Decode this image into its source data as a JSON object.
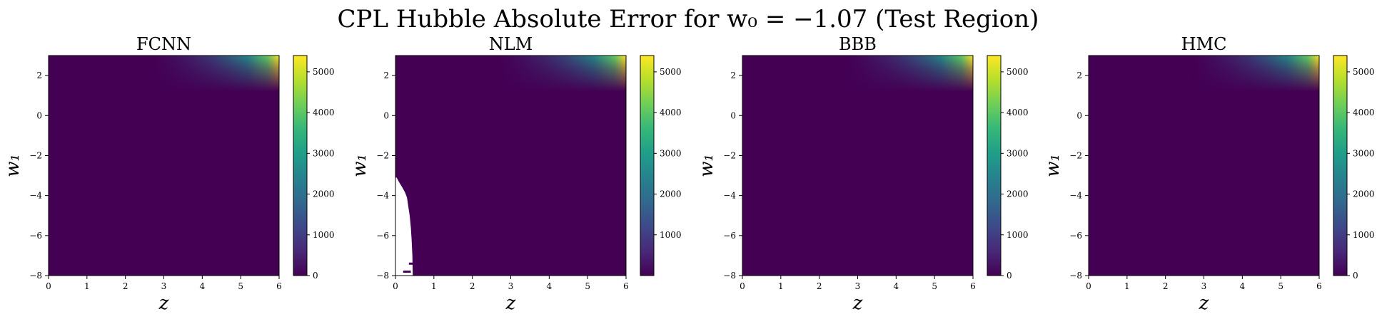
{
  "figure": {
    "title": "CPL Hubble Absolute Error for w₀ = −1.07 (Test Region)"
  },
  "chart_data": [
    {
      "type": "heatmap",
      "title": "FCNN",
      "xlabel": "z",
      "ylabel": "w₁",
      "xlim": [
        0,
        6
      ],
      "ylim": [
        -8,
        3
      ],
      "xticks": [
        "0",
        "1",
        "2",
        "3",
        "4",
        "5",
        "6"
      ],
      "yticks": [
        "−8",
        "−6",
        "−4",
        "−2",
        "0",
        "2"
      ],
      "colorbar": {
        "min": 0,
        "max": 5400,
        "ticks": [
          "0",
          "1000",
          "2000",
          "3000",
          "4000",
          "5000"
        ],
        "colormap": "viridis"
      },
      "max_error_region": "top-right",
      "blank_region": false
    },
    {
      "type": "heatmap",
      "title": "NLM",
      "xlabel": "z",
      "ylabel": "w₁",
      "xlim": [
        0,
        6
      ],
      "ylim": [
        -8,
        3
      ],
      "xticks": [
        "0",
        "1",
        "2",
        "3",
        "4",
        "5",
        "6"
      ],
      "yticks": [
        "−8",
        "−6",
        "−4",
        "−2",
        "0",
        "2"
      ],
      "colorbar": {
        "min": 0,
        "max": 5400,
        "ticks": [
          "1000",
          "2000",
          "3000",
          "4000",
          "5000"
        ],
        "colormap": "viridis"
      },
      "max_error_region": "top-right",
      "blank_region": true,
      "blank_region_z_max": 0.45,
      "blank_region_w1_top": -3.1
    },
    {
      "type": "heatmap",
      "title": "BBB",
      "xlabel": "z",
      "ylabel": "w₁",
      "xlim": [
        0,
        6
      ],
      "ylim": [
        -8,
        3
      ],
      "xticks": [
        "0",
        "1",
        "2",
        "3",
        "4",
        "5",
        "6"
      ],
      "yticks": [
        "−8",
        "−6",
        "−4",
        "−2",
        "0",
        "2"
      ],
      "colorbar": {
        "min": 0,
        "max": 5400,
        "ticks": [
          "0",
          "1000",
          "2000",
          "3000",
          "4000",
          "5000"
        ],
        "colormap": "viridis"
      },
      "max_error_region": "top-right",
      "blank_region": false
    },
    {
      "type": "heatmap",
      "title": "HMC",
      "xlabel": "z",
      "ylabel": "w₁",
      "xlim": [
        0,
        6
      ],
      "ylim": [
        -8,
        3
      ],
      "xticks": [
        "0",
        "1",
        "2",
        "3",
        "4",
        "5",
        "6"
      ],
      "yticks": [
        "−8",
        "−6",
        "−4",
        "−2",
        "0",
        "2"
      ],
      "colorbar": {
        "min": 0,
        "max": 5400,
        "ticks": [
          "0",
          "1000",
          "2000",
          "3000",
          "4000",
          "5000"
        ],
        "colormap": "viridis"
      },
      "max_error_region": "top-right",
      "blank_region": false
    }
  ]
}
